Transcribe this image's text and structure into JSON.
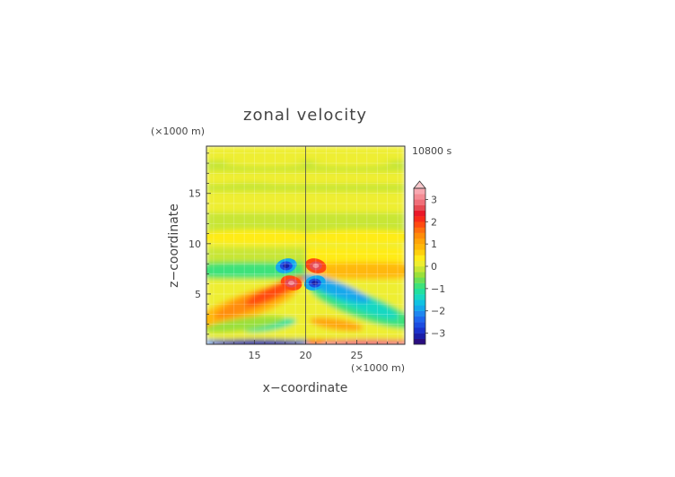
{
  "chart_data": {
    "type": "heatmap",
    "title": "zonal velocity",
    "xlabel": "x−coordinate",
    "ylabel": "z−coordinate",
    "x_unit": "(×1000 m)",
    "y_unit": "(×1000 m)",
    "time_label": "10800 s",
    "xlim": [
      10.3,
      29.7
    ],
    "ylim": [
      0,
      19.7
    ],
    "x_ticks": [
      15,
      20,
      25
    ],
    "y_ticks": [
      5,
      10,
      15
    ],
    "colorbar": {
      "levels": [
        -3.5,
        -3.25,
        -3,
        -2.75,
        -2.5,
        -2.25,
        -2,
        -1.75,
        -1.5,
        -1.25,
        -1,
        -0.75,
        -0.5,
        -0.25,
        0,
        0.25,
        0.5,
        0.75,
        1,
        1.25,
        1.5,
        1.75,
        2,
        2.25,
        2.5,
        2.75,
        3,
        3.25,
        3.5
      ],
      "tick_labels": [
        3,
        2,
        1,
        0,
        -1,
        -2,
        -3
      ],
      "extend": "max",
      "colors": [
        "#2a0e80",
        "#1a1ea8",
        "#1a32cc",
        "#1c4ce0",
        "#1f66ee",
        "#1f86f0",
        "#14a8ec",
        "#10c2e2",
        "#18d8c2",
        "#22e09e",
        "#3ee27a",
        "#6ae056",
        "#9ae03a",
        "#c8e634",
        "#eeee30",
        "#ffec18",
        "#ffd00c",
        "#ffb808",
        "#ffa408",
        "#ff8c08",
        "#ff6e0c",
        "#ff4a10",
        "#f82a18",
        "#ea1828",
        "#e64a52",
        "#f06e78",
        "#f48c94",
        "#f8a8b0"
      ]
    },
    "features": [
      {
        "x": 18.1,
        "z": 7.8,
        "u": -3.2
      },
      {
        "x": 21.0,
        "z": 7.8,
        "u": 3.2
      },
      {
        "x": 18.6,
        "z": 6.1,
        "u": 3.2
      },
      {
        "x": 20.9,
        "z": 6.1,
        "u": -3.2
      }
    ]
  }
}
